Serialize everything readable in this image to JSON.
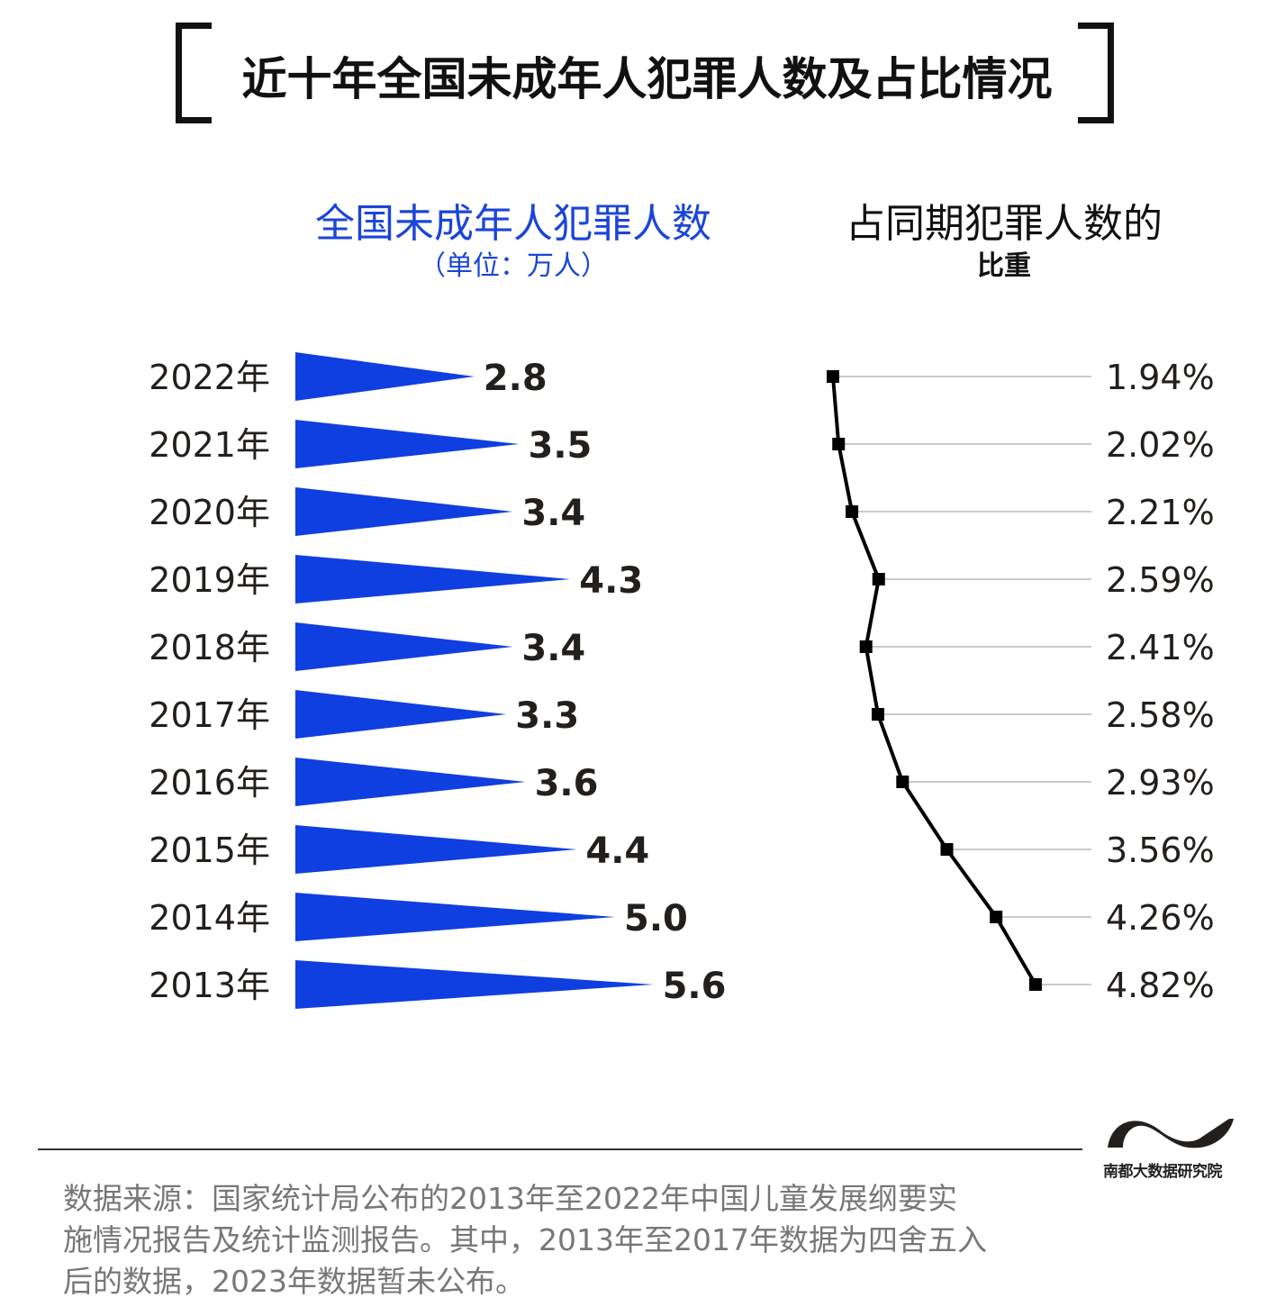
{
  "title": "近十年全国未成年人犯罪人数及占比情况",
  "left_header": {
    "title": "全国未成年人犯罪人数",
    "unit": "（单位：万人）"
  },
  "right_header": {
    "title": "占同期犯罪人数的",
    "subtitle": "比重"
  },
  "chart_data": [
    {
      "type": "bar",
      "title": "全国未成年人犯罪人数",
      "ylabel": "单位：万人",
      "categories": [
        "2022年",
        "2021年",
        "2020年",
        "2019年",
        "2018年",
        "2017年",
        "2016年",
        "2015年",
        "2014年",
        "2013年"
      ],
      "values": [
        2.8,
        3.5,
        3.4,
        4.3,
        3.4,
        3.3,
        3.6,
        4.4,
        5.0,
        5.6
      ],
      "value_labels": [
        "2.8",
        "3.5",
        "3.4",
        "4.3",
        "3.4",
        "3.3",
        "3.6",
        "4.4",
        "5.0",
        "5.6"
      ],
      "orientation": "horizontal",
      "color": "#0f3fe0"
    },
    {
      "type": "line",
      "title": "占同期犯罪人数的比重",
      "categories": [
        "2022年",
        "2021年",
        "2020年",
        "2019年",
        "2018年",
        "2017年",
        "2016年",
        "2015年",
        "2014年",
        "2013年"
      ],
      "values": [
        1.94,
        2.02,
        2.21,
        2.59,
        2.41,
        2.58,
        2.93,
        3.56,
        4.26,
        4.82
      ],
      "value_labels": [
        "1.94%",
        "2.02%",
        "2.21%",
        "2.59%",
        "2.41%",
        "2.58%",
        "2.93%",
        "3.56%",
        "4.26%",
        "4.82%"
      ],
      "unit": "%",
      "color": "#000000"
    }
  ],
  "logo_text": "南都大数据研究院",
  "source": [
    "数据来源：国家统计局公布的2013年至2022年中国儿童发展纲要实",
    "施情况报告及统计监测报告。其中，2013年至2017年数据为四舍五入",
    "后的数据，2023年数据暂未公布。"
  ]
}
